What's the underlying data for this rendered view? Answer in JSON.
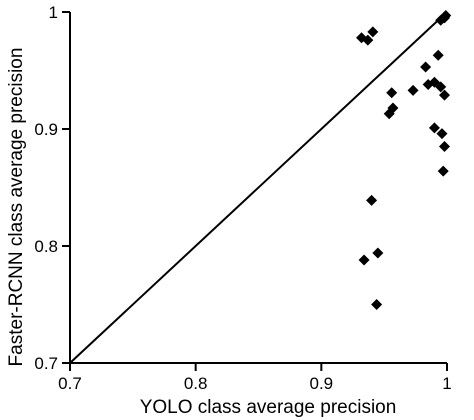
{
  "chart_data": {
    "type": "scatter",
    "title": "",
    "xlabel": "YOLO class average precision",
    "ylabel": "Faster-RCNN class average precision",
    "xlim": [
      0.7,
      1.0
    ],
    "ylim": [
      0.7,
      1.0
    ],
    "xticks": [
      0.7,
      0.8,
      0.9,
      1.0
    ],
    "yticks": [
      0.7,
      0.8,
      0.9,
      1.0
    ],
    "xtick_labels": [
      "0.7",
      "0.8",
      "0.9",
      "1"
    ],
    "ytick_labels": [
      "0.7",
      "0.8",
      "0.9",
      "1"
    ],
    "marker": "diamond",
    "marker_color": "#000000",
    "reference_line": "y = x",
    "grid": false,
    "legend": "none",
    "points": [
      {
        "x": 0.932,
        "y": 0.978
      },
      {
        "x": 0.937,
        "y": 0.976
      },
      {
        "x": 0.941,
        "y": 0.983
      },
      {
        "x": 0.94,
        "y": 0.839
      },
      {
        "x": 0.934,
        "y": 0.788
      },
      {
        "x": 0.945,
        "y": 0.794
      },
      {
        "x": 0.944,
        "y": 0.75
      },
      {
        "x": 0.954,
        "y": 0.913
      },
      {
        "x": 0.956,
        "y": 0.931
      },
      {
        "x": 0.957,
        "y": 0.918
      },
      {
        "x": 0.973,
        "y": 0.933
      },
      {
        "x": 0.983,
        "y": 0.953
      },
      {
        "x": 0.985,
        "y": 0.938
      },
      {
        "x": 0.99,
        "y": 0.94
      },
      {
        "x": 0.99,
        "y": 0.901
      },
      {
        "x": 0.993,
        "y": 0.963
      },
      {
        "x": 0.995,
        "y": 0.936
      },
      {
        "x": 0.995,
        "y": 0.993
      },
      {
        "x": 0.996,
        "y": 0.896
      },
      {
        "x": 0.997,
        "y": 0.864
      },
      {
        "x": 0.998,
        "y": 0.995
      },
      {
        "x": 0.998,
        "y": 0.929
      },
      {
        "x": 0.998,
        "y": 0.885
      },
      {
        "x": 0.999,
        "y": 0.997
      }
    ]
  }
}
